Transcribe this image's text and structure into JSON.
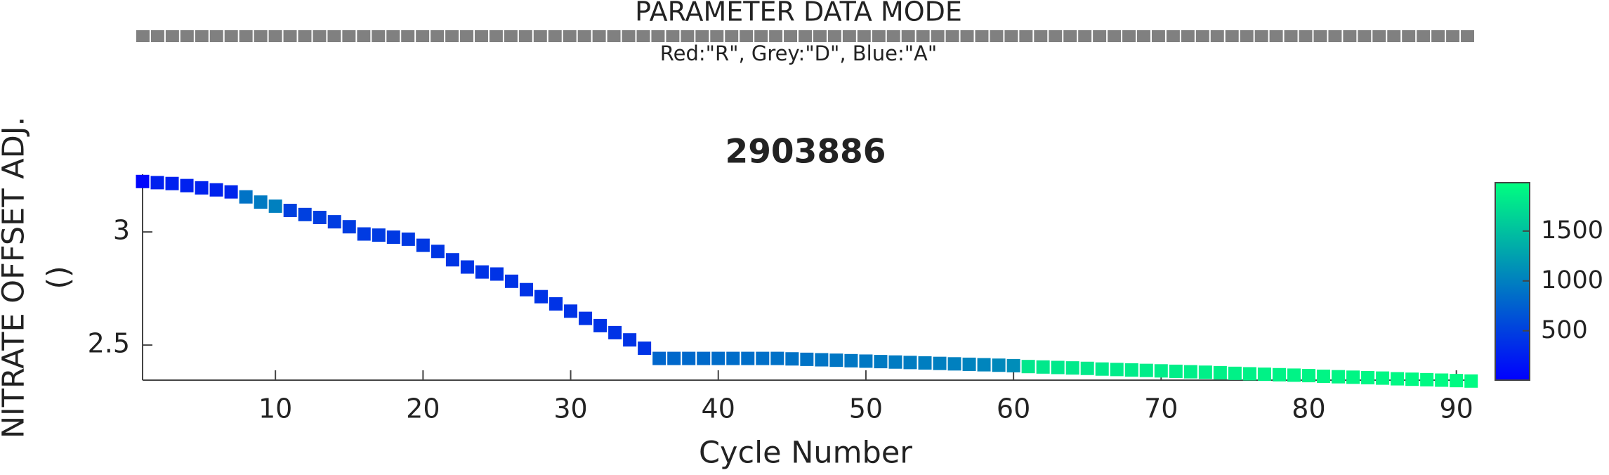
{
  "chart_data": {
    "type": "scatter",
    "mode_title": "PARAMETER DATA MODE",
    "mode_caption": "Red:\"R\", Grey:\"D\", Blue:\"A\"",
    "mode_colors": {
      "R": "#ff0000",
      "D": "#808080",
      "A": "#0000ff"
    },
    "data_mode": [
      "D",
      "D",
      "D",
      "D",
      "D",
      "D",
      "D",
      "D",
      "D",
      "D",
      "D",
      "D",
      "D",
      "D",
      "D",
      "D",
      "D",
      "D",
      "D",
      "D",
      "D",
      "D",
      "D",
      "D",
      "D",
      "D",
      "D",
      "D",
      "D",
      "D",
      "D",
      "D",
      "D",
      "D",
      "D",
      "D",
      "D",
      "D",
      "D",
      "D",
      "D",
      "D",
      "D",
      "D",
      "D",
      "D",
      "D",
      "D",
      "D",
      "D",
      "D",
      "D",
      "D",
      "D",
      "D",
      "D",
      "D",
      "D",
      "D",
      "D",
      "D",
      "D",
      "D",
      "D",
      "D",
      "D",
      "D",
      "D",
      "D",
      "D",
      "D",
      "D",
      "D",
      "D",
      "D",
      "D",
      "D",
      "D",
      "D",
      "D",
      "D",
      "D",
      "D",
      "D",
      "D",
      "D",
      "D",
      "D",
      "D",
      "D",
      "D"
    ],
    "title": "2903886",
    "xlabel": "Cycle Number",
    "ylabel": [
      "NITRATE OFFSET ADJ.",
      "()"
    ],
    "x": [
      1,
      2,
      3,
      4,
      5,
      6,
      7,
      8,
      9,
      10,
      11,
      12,
      13,
      14,
      15,
      16,
      17,
      18,
      19,
      20,
      21,
      22,
      23,
      24,
      25,
      26,
      27,
      28,
      29,
      30,
      31,
      32,
      33,
      34,
      35,
      36,
      37,
      38,
      39,
      40,
      41,
      42,
      43,
      44,
      45,
      46,
      47,
      48,
      49,
      50,
      51,
      52,
      53,
      54,
      55,
      56,
      57,
      58,
      59,
      60,
      61,
      62,
      63,
      64,
      65,
      66,
      67,
      68,
      69,
      70,
      71,
      72,
      73,
      74,
      75,
      76,
      77,
      78,
      79,
      80,
      81,
      82,
      83,
      84,
      85,
      86,
      87,
      88,
      89,
      90,
      91
    ],
    "y": [
      3.223,
      3.218,
      3.214,
      3.205,
      3.195,
      3.186,
      3.177,
      3.155,
      3.132,
      3.114,
      3.095,
      3.077,
      3.064,
      3.045,
      3.023,
      2.991,
      2.986,
      2.977,
      2.968,
      2.941,
      2.914,
      2.877,
      2.845,
      2.823,
      2.814,
      2.782,
      2.745,
      2.714,
      2.682,
      2.65,
      2.618,
      2.586,
      2.555,
      2.523,
      2.486,
      2.441,
      2.441,
      2.441,
      2.441,
      2.441,
      2.441,
      2.441,
      2.441,
      2.441,
      2.439,
      2.437,
      2.435,
      2.433,
      2.431,
      2.429,
      2.427,
      2.425,
      2.423,
      2.421,
      2.419,
      2.417,
      2.415,
      2.413,
      2.411,
      2.409,
      2.405,
      2.403,
      2.401,
      2.399,
      2.397,
      2.394,
      2.392,
      2.39,
      2.388,
      2.386,
      2.384,
      2.382,
      2.38,
      2.378,
      2.375,
      2.373,
      2.371,
      2.369,
      2.367,
      2.365,
      2.362,
      2.36,
      2.358,
      2.356,
      2.354,
      2.351,
      2.349,
      2.347,
      2.345,
      2.343,
      2.341
    ],
    "color_values": [
      50,
      250,
      250,
      260,
      270,
      280,
      300,
      900,
      950,
      1000,
      500,
      500,
      490,
      480,
      470,
      460,
      460,
      450,
      450,
      440,
      420,
      410,
      400,
      400,
      400,
      400,
      400,
      400,
      400,
      400,
      400,
      400,
      400,
      400,
      400,
      800,
      810,
      820,
      830,
      840,
      850,
      860,
      870,
      880,
      890,
      900,
      910,
      920,
      930,
      940,
      950,
      960,
      970,
      980,
      990,
      1000,
      1020,
      1040,
      1060,
      1100,
      1800,
      1810,
      1815,
      1820,
      1825,
      1830,
      1835,
      1840,
      1845,
      1850,
      1855,
      1860,
      1865,
      1870,
      1875,
      1880,
      1885,
      1890,
      1895,
      1900,
      1905,
      1910,
      1915,
      1920,
      1925,
      1930,
      1935,
      1940,
      1945,
      1948,
      1950
    ],
    "colormap": [
      "#0000ff",
      "#00ff80"
    ],
    "clim": [
      5,
      1985
    ],
    "cticks": [
      500,
      1000,
      1500
    ],
    "xlim": [
      1,
      91.3
    ],
    "xticks": [
      10,
      20,
      30,
      40,
      50,
      60,
      70,
      80,
      90
    ],
    "ylim": [
      2.345,
      3.255
    ],
    "yticks": [
      2.5,
      3
    ]
  }
}
